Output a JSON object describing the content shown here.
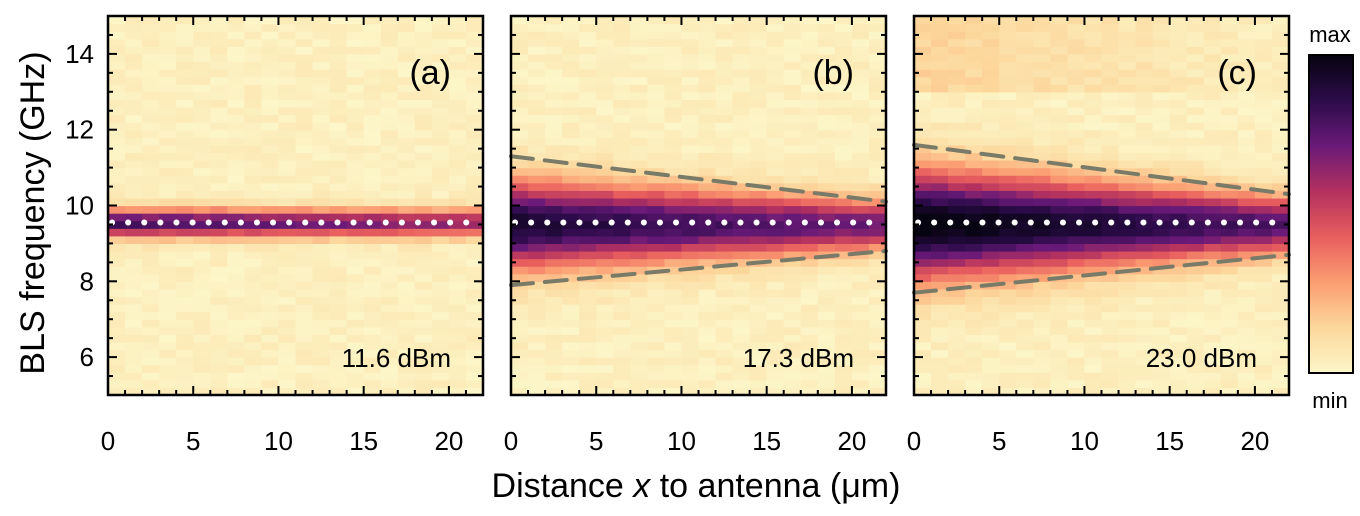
{
  "figure": {
    "xlabel_pre": "Distance ",
    "xlabel_var": "x",
    "xlabel_post": " to antenna (μm)",
    "ylabel": "BLS frequency (GHz)"
  },
  "colorbar": {
    "max_label": "max",
    "min_label": "min",
    "colormap": "magma",
    "stops": [
      "#fcf6c8",
      "#fcd79c",
      "#fb9d72",
      "#e85e5e",
      "#b3315f",
      "#6a1a78",
      "#2c0b4a",
      "#060410"
    ]
  },
  "chart_data": [
    {
      "type": "heatmap",
      "panel_label": "(a)",
      "power_label": "11.6 dBm",
      "x_range": [
        0,
        22
      ],
      "y_range": [
        5,
        15
      ],
      "x_ticks": [
        0,
        5,
        10,
        15,
        20
      ],
      "y_ticks": [
        6,
        8,
        10,
        12,
        14
      ],
      "center_frequency": 9.55,
      "band_width_start": 0.25,
      "band_width_end": 0.25,
      "peak_intensity": 0.8,
      "dotted_line": {
        "x": [
          0,
          22
        ],
        "y": [
          9.55,
          9.55
        ],
        "color": "#ffffff"
      },
      "dashed_lines": []
    },
    {
      "type": "heatmap",
      "panel_label": "(b)",
      "power_label": "17.3 dBm",
      "x_range": [
        0,
        22
      ],
      "y_range": [
        5,
        15
      ],
      "x_ticks": [
        0,
        5,
        10,
        15,
        20
      ],
      "y_ticks": [
        6,
        8,
        10,
        12,
        14
      ],
      "center_frequency": 9.5,
      "band_width_start": 0.8,
      "band_width_end": 0.45,
      "peak_intensity": 0.9,
      "dotted_line": {
        "x": [
          0,
          22
        ],
        "y": [
          9.55,
          9.55
        ],
        "color": "#ffffff"
      },
      "dashed_lines": [
        {
          "x": [
            0,
            22
          ],
          "y": [
            11.3,
            10.1
          ],
          "color": "#7a7a68"
        },
        {
          "x": [
            0,
            22
          ],
          "y": [
            7.9,
            8.8
          ],
          "color": "#7a7a68"
        }
      ]
    },
    {
      "type": "heatmap",
      "panel_label": "(c)",
      "power_label": "23.0 dBm",
      "x_range": [
        0,
        22
      ],
      "y_range": [
        5,
        15
      ],
      "x_ticks": [
        0,
        5,
        10,
        15,
        20
      ],
      "y_ticks": [
        6,
        8,
        10,
        12,
        14
      ],
      "center_frequency": 9.5,
      "band_width_start": 1.0,
      "band_width_end": 0.5,
      "peak_intensity": 1.0,
      "dotted_line": {
        "x": [
          0,
          22
        ],
        "y": [
          9.55,
          9.55
        ],
        "color": "#ffffff"
      },
      "dashed_lines": [
        {
          "x": [
            0,
            22
          ],
          "y": [
            11.6,
            10.3
          ],
          "color": "#7a7a68"
        },
        {
          "x": [
            0,
            22
          ],
          "y": [
            7.7,
            8.7
          ],
          "color": "#7a7a68"
        }
      ]
    }
  ]
}
